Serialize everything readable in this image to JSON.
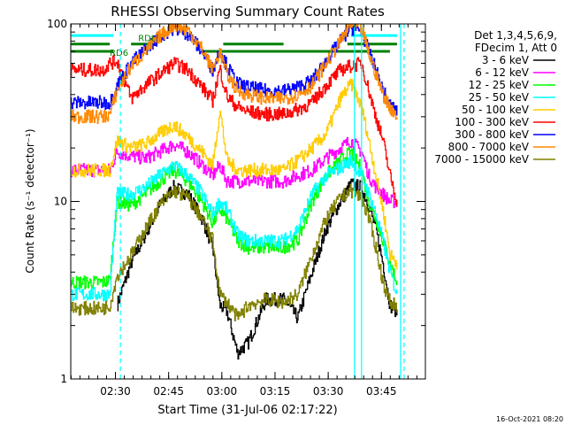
{
  "chart_data": {
    "type": "line",
    "title": "RHESSI Observing Summary Count Rates",
    "xlabel": "Start Time (31-Jul-06 02:17:22)",
    "ylabel": "Count Rate (s⁻¹ detector⁻¹)",
    "x_units": "minutes after 02:17:22",
    "xlim": [
      0,
      100
    ],
    "ylim": [
      1,
      100
    ],
    "yscale": "log",
    "x_ticks": [
      {
        "x": 12.6,
        "label": "02:30"
      },
      {
        "x": 27.6,
        "label": "02:45"
      },
      {
        "x": 42.6,
        "label": "03:00"
      },
      {
        "x": 57.6,
        "label": "03:15"
      },
      {
        "x": 72.6,
        "label": "03:30"
      },
      {
        "x": 87.6,
        "label": "03:45"
      }
    ],
    "y_ticks": [
      {
        "y": 1,
        "label": "1"
      },
      {
        "y": 10,
        "label": "10"
      },
      {
        "y": 100,
        "label": "100"
      }
    ],
    "legend": {
      "placement": "right",
      "header_lines": [
        "Det 1,3,4,5,6,9,",
        "FDecim 1, Att 0"
      ]
    },
    "series": [
      {
        "name": "3 - 6 keV",
        "color": "#000000",
        "x": [
          0,
          11,
          13,
          17,
          21,
          25,
          29,
          33,
          37,
          40,
          42,
          44,
          47,
          50,
          55,
          60,
          64,
          68,
          72,
          76,
          79,
          82,
          84,
          86,
          88,
          90,
          92
        ],
        "y": [
          null,
          null,
          2.6,
          4.5,
          6.5,
          9.5,
          12,
          11,
          8,
          5.5,
          2.6,
          2.4,
          1.4,
          1.6,
          2.8,
          2.8,
          2.2,
          4,
          7,
          10,
          12.5,
          12,
          9.5,
          7,
          4.5,
          2.6,
          2.4
        ]
      },
      {
        "name": "6 - 12 keV",
        "color": "#ff00ff",
        "x": [
          0,
          9,
          11,
          13,
          17,
          21,
          25,
          29,
          33,
          37,
          40,
          42,
          44,
          47,
          50,
          55,
          60,
          64,
          68,
          72,
          76,
          79,
          82,
          84,
          86,
          88,
          90,
          92
        ],
        "y": [
          15,
          15,
          15,
          19,
          18,
          17.5,
          19,
          21,
          19,
          16,
          14,
          16,
          13,
          13,
          13,
          13,
          13,
          14,
          15,
          17.5,
          20,
          22,
          19,
          14,
          12,
          11,
          10,
          10
        ]
      },
      {
        "name": "12 - 25 keV",
        "color": "#00ff00",
        "x": [
          0,
          9,
          11,
          13,
          17,
          21,
          25,
          29,
          33,
          37,
          40,
          42,
          44,
          47,
          50,
          55,
          60,
          64,
          68,
          72,
          76,
          79,
          82,
          84,
          86,
          88,
          90,
          92
        ],
        "y": [
          3.5,
          3.5,
          3.6,
          10,
          9.5,
          11,
          13,
          15,
          13,
          10,
          7.5,
          9,
          8,
          6,
          5.5,
          5.5,
          5.5,
          6,
          10,
          14,
          17,
          19,
          15,
          10,
          8,
          6,
          4.5,
          3.5
        ]
      },
      {
        "name": "25 - 50 keV",
        "color": "#00ffff",
        "x": [
          0,
          9,
          11,
          13,
          17,
          21,
          25,
          29,
          33,
          37,
          40,
          42,
          44,
          47,
          50,
          55,
          60,
          64,
          68,
          72,
          76,
          79,
          82,
          84,
          86,
          88,
          90,
          92
        ],
        "y": [
          3,
          3,
          3,
          11,
          11,
          12,
          14,
          16,
          14,
          11,
          8.5,
          10,
          9,
          6.5,
          6,
          6,
          6,
          7,
          11,
          14,
          15.5,
          17,
          14,
          11,
          8.5,
          6,
          4,
          3
        ]
      },
      {
        "name": "50 - 100 keV",
        "color": "#ffcc00",
        "x": [
          0,
          9,
          11,
          13,
          17,
          21,
          25,
          29,
          33,
          37,
          40,
          42,
          44,
          47,
          50,
          55,
          60,
          64,
          68,
          72,
          76,
          79,
          82,
          84,
          86,
          88,
          90,
          92
        ],
        "y": [
          15,
          15,
          15,
          22,
          20,
          21,
          24,
          27,
          23,
          19,
          16,
          33,
          17,
          15,
          15,
          15,
          15,
          17,
          20,
          24,
          38,
          46,
          34,
          22,
          14,
          9,
          5,
          4.5
        ]
      },
      {
        "name": "100 - 300 keV",
        "color": "#ff0000",
        "x": [
          0,
          9,
          11,
          13,
          17,
          21,
          25,
          29,
          33,
          37,
          40,
          42,
          44,
          47,
          50,
          55,
          60,
          64,
          68,
          72,
          76,
          79,
          82,
          84,
          86,
          88,
          90,
          92
        ],
        "y": [
          55,
          55,
          60,
          62,
          38,
          45,
          52,
          60,
          55,
          44,
          37,
          56,
          39,
          34,
          32,
          31,
          31,
          33,
          36,
          45,
          55,
          58,
          60,
          42,
          30,
          22,
          14,
          10
        ]
      },
      {
        "name": "300 - 800 keV",
        "color": "#0000ff",
        "x": [
          0,
          9,
          11,
          13,
          17,
          21,
          25,
          29,
          33,
          37,
          40,
          42,
          44,
          47,
          50,
          55,
          60,
          64,
          68,
          72,
          76,
          79,
          82,
          84,
          86,
          88,
          90,
          92
        ],
        "y": [
          36,
          36,
          36,
          45,
          60,
          72,
          85,
          95,
          88,
          70,
          55,
          72,
          58,
          46,
          44,
          42,
          42,
          44,
          48,
          62,
          80,
          95,
          90,
          70,
          55,
          42,
          35,
          32
        ]
      },
      {
        "name": "800 - 7000 keV",
        "color": "#ff8800",
        "x": [
          0,
          9,
          11,
          13,
          17,
          21,
          25,
          29,
          33,
          37,
          40,
          42,
          44,
          47,
          50,
          55,
          60,
          64,
          68,
          72,
          76,
          79,
          82,
          84,
          86,
          88,
          90,
          92
        ],
        "y": [
          30,
          30,
          31,
          42,
          58,
          70,
          85,
          99,
          92,
          72,
          55,
          70,
          52,
          42,
          40,
          38,
          38,
          40,
          45,
          60,
          80,
          100,
          94,
          68,
          52,
          40,
          34,
          30
        ]
      },
      {
        "name": "7000 - 15000 keV",
        "color": "#808000",
        "x": [
          0,
          9,
          11,
          13,
          17,
          21,
          25,
          29,
          33,
          37,
          40,
          42,
          44,
          47,
          50,
          55,
          60,
          64,
          68,
          72,
          76,
          79,
          82,
          84,
          86,
          88,
          90,
          92
        ],
        "y": [
          2.5,
          2.5,
          2.6,
          3.8,
          5,
          7,
          9.5,
          11.5,
          10.5,
          8,
          6,
          3,
          2.7,
          2.2,
          2.6,
          2.8,
          2.7,
          3,
          5,
          8,
          10.5,
          11.5,
          10.5,
          8,
          5.5,
          3.5,
          2.7,
          2.6
        ]
      }
    ],
    "state_bars": [
      {
        "name": "RD6 lower",
        "label": "RD6",
        "color": "#008000",
        "y": 70,
        "segments": [
          [
            0,
            12
          ],
          [
            37,
            90
          ]
        ]
      },
      {
        "name": "RD6 upper",
        "label": "RDt",
        "color": "#008000",
        "y": 77,
        "segments": [
          [
            0,
            11
          ],
          [
            17,
            24
          ],
          [
            43,
            60
          ],
          [
            78,
            92
          ]
        ]
      },
      {
        "name": "cyan upper bar",
        "color": "#00ffff",
        "y": 86,
        "segments": [
          [
            0,
            12
          ],
          [
            79,
            92
          ]
        ]
      }
    ],
    "state_labels": [
      {
        "text": "RD6",
        "x": 11,
        "y": 66
      },
      {
        "text": "RDt",
        "x": 19,
        "y": 80
      }
    ],
    "vertical_markers": [
      {
        "x": 0,
        "style": "solid",
        "color": "#00ffff"
      },
      {
        "x": 14,
        "style": "dashed",
        "color": "#00ffff"
      },
      {
        "x": 80,
        "style": "solid",
        "color": "#00ffff"
      },
      {
        "x": 82,
        "style": "solid",
        "color": "#00ffff"
      },
      {
        "x": 93,
        "style": "solid",
        "color": "#00ffff"
      },
      {
        "x": 94,
        "style": "dashed",
        "color": "#00ffff"
      }
    ]
  },
  "footer": {
    "timestamp": "16-Oct-2021 08:20"
  }
}
